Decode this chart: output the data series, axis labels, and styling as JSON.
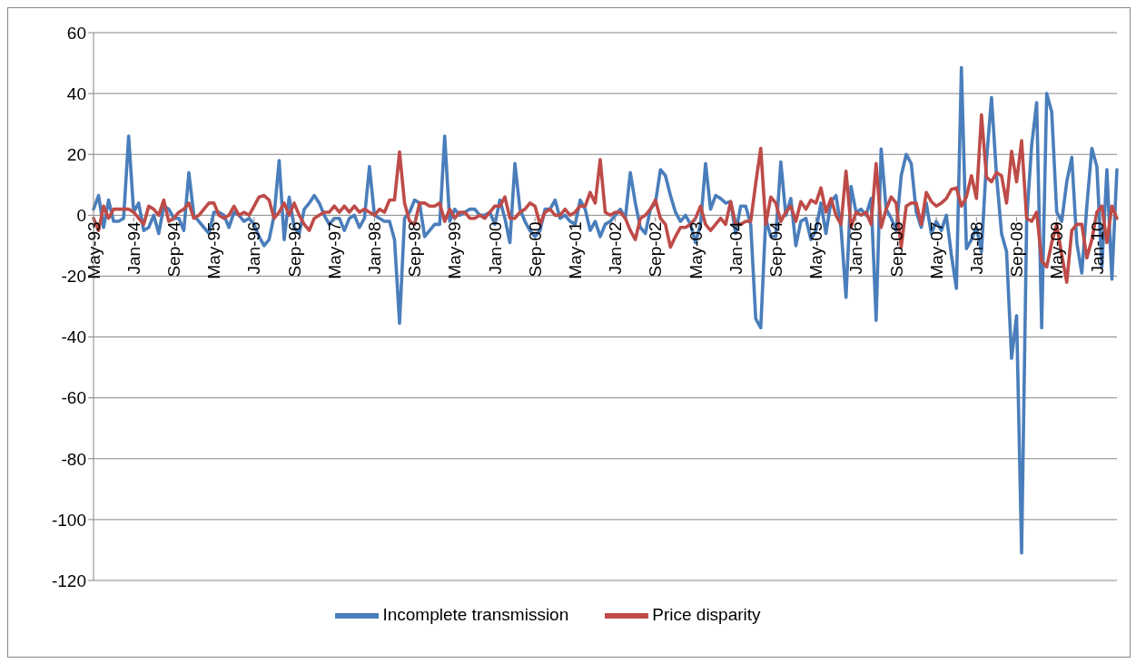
{
  "chart_data": {
    "type": "line",
    "categories": [
      "May-93",
      null,
      null,
      null,
      null,
      null,
      null,
      null,
      "Jan-94",
      null,
      null,
      null,
      null,
      null,
      null,
      null,
      "Sep-94",
      null,
      null,
      null,
      null,
      null,
      null,
      null,
      "May-95",
      null,
      null,
      null,
      null,
      null,
      null,
      null,
      "Jan-96",
      null,
      null,
      null,
      null,
      null,
      null,
      null,
      "Sep-96",
      null,
      null,
      null,
      null,
      null,
      null,
      null,
      "May-97",
      null,
      null,
      null,
      null,
      null,
      null,
      null,
      "Jan-98",
      null,
      null,
      null,
      null,
      null,
      null,
      null,
      "Sep-98",
      null,
      null,
      null,
      null,
      null,
      null,
      null,
      "May-99",
      null,
      null,
      null,
      null,
      null,
      null,
      null,
      "Jan-00",
      null,
      null,
      null,
      null,
      null,
      null,
      null,
      "Sep-00",
      null,
      null,
      null,
      null,
      null,
      null,
      null,
      "May-01",
      null,
      null,
      null,
      null,
      null,
      null,
      null,
      "Jan-02",
      null,
      null,
      null,
      null,
      null,
      null,
      null,
      "Sep-02",
      null,
      null,
      null,
      null,
      null,
      null,
      null,
      "May-03",
      null,
      null,
      null,
      null,
      null,
      null,
      null,
      "Jan-04",
      null,
      null,
      null,
      null,
      null,
      null,
      null,
      "Sep-04",
      null,
      null,
      null,
      null,
      null,
      null,
      null,
      "May-05",
      null,
      null,
      null,
      null,
      null,
      null,
      null,
      "Jan-06",
      null,
      null,
      null,
      null,
      null,
      null,
      null,
      "Sep-06",
      null,
      null,
      null,
      null,
      null,
      null,
      null,
      "May-07",
      null,
      null,
      null,
      null,
      null,
      null,
      null,
      "Jan-08",
      null,
      null,
      null,
      null,
      null,
      null,
      null,
      "Sep-08",
      null,
      null,
      null,
      null,
      null,
      null,
      null,
      "May-09",
      null,
      null,
      null,
      null,
      null,
      null,
      null,
      "Jan-10",
      null,
      null,
      null,
      null
    ],
    "series": [
      {
        "name": "Incomplete transmission",
        "color": "#4a7ebb",
        "values": [
          2,
          6.5,
          -4,
          5,
          -2,
          -2,
          -1,
          26,
          1,
          4,
          -5,
          -4,
          0,
          -6,
          3,
          2,
          -1,
          -1,
          -5,
          14,
          0,
          -2,
          -4,
          -6,
          1,
          1,
          0,
          -4,
          1,
          0,
          -2,
          -1,
          -3,
          -7,
          -10,
          -8,
          0,
          18,
          -8,
          6,
          -4,
          -6,
          2,
          4,
          6.5,
          4,
          0,
          -3,
          -1,
          -1,
          -5,
          -1,
          0,
          -4,
          -1,
          16,
          0,
          -1,
          -2,
          -2,
          -8,
          -35.5,
          -1,
          1,
          5,
          4,
          -7,
          -5,
          -3,
          -3,
          26,
          -2,
          2,
          0,
          1,
          2,
          2,
          0,
          0,
          1,
          -3,
          5,
          -1,
          -9,
          17,
          2,
          -2,
          -5,
          -7,
          -5,
          2,
          2,
          5,
          -1,
          0,
          -2,
          -3,
          5,
          2,
          -5,
          -2,
          -7,
          -3,
          -2,
          0,
          2,
          -1,
          14,
          4,
          -4,
          -6,
          2,
          4,
          15,
          13,
          6.5,
          1,
          -2,
          0,
          -3,
          -9,
          -3,
          17,
          2,
          6.5,
          5.5,
          4,
          4.5,
          -6,
          3,
          3,
          -3,
          -34,
          -37,
          -1,
          -7,
          -7,
          17.5,
          0,
          5.5,
          -10,
          -2,
          -1,
          -8,
          -5,
          4,
          -6,
          4.5,
          6.5,
          -4,
          -27,
          9.5,
          1,
          2,
          0,
          5.5,
          -34.5,
          21.8,
          2,
          -1,
          -5,
          13,
          20,
          17,
          1,
          -4,
          4,
          -6,
          -2,
          -5,
          0,
          -13,
          -24,
          48.5,
          -11,
          -8,
          -4,
          -12,
          18,
          38.7,
          13,
          -6,
          -12,
          -47,
          -33,
          -111,
          -2,
          23,
          37,
          -37,
          40,
          34,
          1,
          -2,
          11,
          19,
          -9,
          -19,
          3,
          22,
          16,
          -17,
          15,
          -21,
          15
        ]
      },
      {
        "name": "Price disparity",
        "color": "#be4b48",
        "values": [
          -1,
          -5,
          3,
          -1,
          2,
          2,
          2,
          2,
          1,
          -1,
          -3,
          3,
          2,
          0,
          5,
          -2,
          -1,
          1,
          2,
          4,
          -1,
          0,
          2,
          4,
          4,
          0,
          -1,
          0,
          3,
          0,
          1,
          0,
          3,
          6,
          6.5,
          5,
          -1,
          1,
          4,
          0,
          4,
          0,
          -3,
          -5,
          -1,
          0,
          1,
          1,
          3,
          1,
          3,
          1,
          3,
          1,
          2,
          1,
          0,
          2,
          1,
          5,
          5,
          20.8,
          4,
          -2,
          -3,
          4,
          4,
          3,
          3,
          4,
          -2,
          2,
          -1,
          1,
          1,
          -1,
          -1,
          0,
          -1,
          1,
          3,
          3,
          6,
          -1,
          -1,
          1,
          2,
          4,
          3,
          -3,
          1,
          2,
          0,
          0,
          2,
          0,
          1,
          3,
          3,
          7.5,
          4,
          18.3,
          1,
          0,
          1,
          1,
          -1,
          -5,
          -8,
          -1,
          0,
          2,
          5,
          -1,
          -3,
          -10.5,
          -7,
          -4,
          -4,
          -3,
          -1,
          3,
          -3,
          -5,
          -3,
          -1,
          -3,
          4.5,
          -3,
          -3,
          -2,
          -2,
          10.5,
          22,
          -3,
          6,
          4,
          -2,
          1,
          3,
          -2,
          4.5,
          2,
          5,
          4,
          9,
          1,
          5.5,
          0,
          -3,
          14.5,
          -4,
          1,
          0,
          1,
          -3,
          17,
          -4,
          2,
          6,
          4,
          -10.5,
          3,
          4,
          4,
          -3,
          7.5,
          4.5,
          3,
          4,
          5.5,
          8.5,
          9,
          3,
          6,
          13,
          5.5,
          33,
          12.5,
          11,
          14,
          13,
          4,
          21,
          11,
          24.5,
          -1,
          -2,
          1,
          -15,
          -17,
          -9,
          -3,
          -13,
          -22,
          -5,
          -3,
          -3,
          -14,
          -8,
          1,
          3,
          -9,
          3,
          -1
        ]
      }
    ],
    "ylim": [
      -120,
      60
    ],
    "yticks": [
      -120,
      -100,
      -80,
      -60,
      -40,
      -20,
      0,
      20,
      40,
      60
    ],
    "grid": "y",
    "legend": "bottom",
    "line_style": "solid",
    "marker": "none"
  }
}
